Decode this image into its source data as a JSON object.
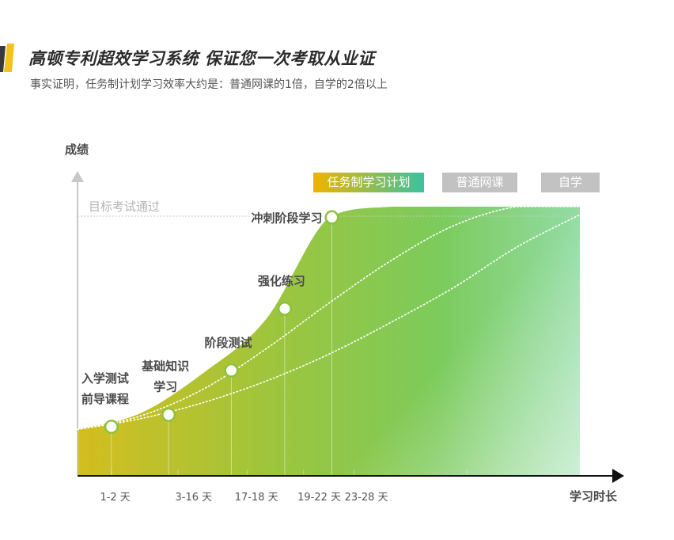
{
  "header": {
    "title": "高顿专利超效学习系统 保证您一次考取从业证",
    "subtitle": "事实证明，任务制计划学习效率大约是：普通网课的1倍，自学的2倍以上"
  },
  "colors": {
    "accent_yellow": "#f3c21b",
    "accent_dark": "#3a3a3a",
    "gradient_start": "#d4be1e",
    "gradient_mid": "#7ccb5c",
    "gradient_end": "#a2e9d6",
    "legend_task_start": "#f0b400",
    "legend_task_end": "#3bc2a0",
    "legend_gray": "#c2c2c2"
  },
  "chart_data": {
    "type": "area",
    "ylabel": "成绩",
    "xlabel": "学习时长",
    "target_line_label": "目标考试通过",
    "x_tick_labels": [
      "1-2 天",
      "3-16 天",
      "17-18 天",
      "19-22 天",
      "23-28 天"
    ],
    "legend": [
      "任务制学习计划",
      "普通网课",
      "自学"
    ],
    "grid": false,
    "series": [
      {
        "name": "任务制学习计划",
        "style": "filled-area",
        "x": [
          0,
          1,
          2,
          3,
          4,
          5,
          6,
          7,
          8
        ],
        "y": [
          0.17,
          0.23,
          0.38,
          0.58,
          0.96,
          1.0,
          1.0,
          1.0,
          1.0
        ]
      },
      {
        "name": "普通网课",
        "style": "dotted",
        "x": [
          0,
          1,
          2,
          3,
          4,
          5,
          6,
          7,
          8
        ],
        "y": [
          0.17,
          0.22,
          0.32,
          0.47,
          0.64,
          0.8,
          0.93,
          1.0,
          1.0
        ]
      },
      {
        "name": "自学",
        "style": "dotted",
        "x": [
          0,
          1,
          2,
          3,
          4,
          5,
          6,
          7,
          8
        ],
        "y": [
          0.17,
          0.21,
          0.27,
          0.35,
          0.45,
          0.57,
          0.7,
          0.85,
          0.97
        ]
      }
    ],
    "milestones": [
      {
        "lines": [
          "入学测试",
          "前导课程"
        ],
        "x": 0.54,
        "y": 0.18
      },
      {
        "lines": [
          "基础知识",
          "学习"
        ],
        "x": 1.45,
        "y": 0.225
      },
      {
        "lines": [
          "阶段测试"
        ],
        "x": 2.45,
        "y": 0.39
      },
      {
        "lines": [
          "强化练习"
        ],
        "x": 3.3,
        "y": 0.62
      },
      {
        "lines": [
          "冲刺阶段学习"
        ],
        "x": 4.05,
        "y": 0.96
      }
    ]
  }
}
